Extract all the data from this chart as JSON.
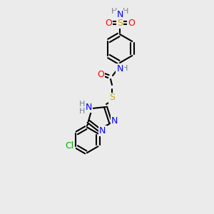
{
  "bg_color": "#ebebeb",
  "atom_colors": {
    "C": "#000000",
    "N": "#0000ff",
    "O": "#ff0000",
    "S": "#ccaa00",
    "Cl": "#00aa00",
    "H": "#708090"
  },
  "bond_color": "#000000",
  "bond_lw": 1.5,
  "fs_main": 9,
  "fs_small": 8
}
